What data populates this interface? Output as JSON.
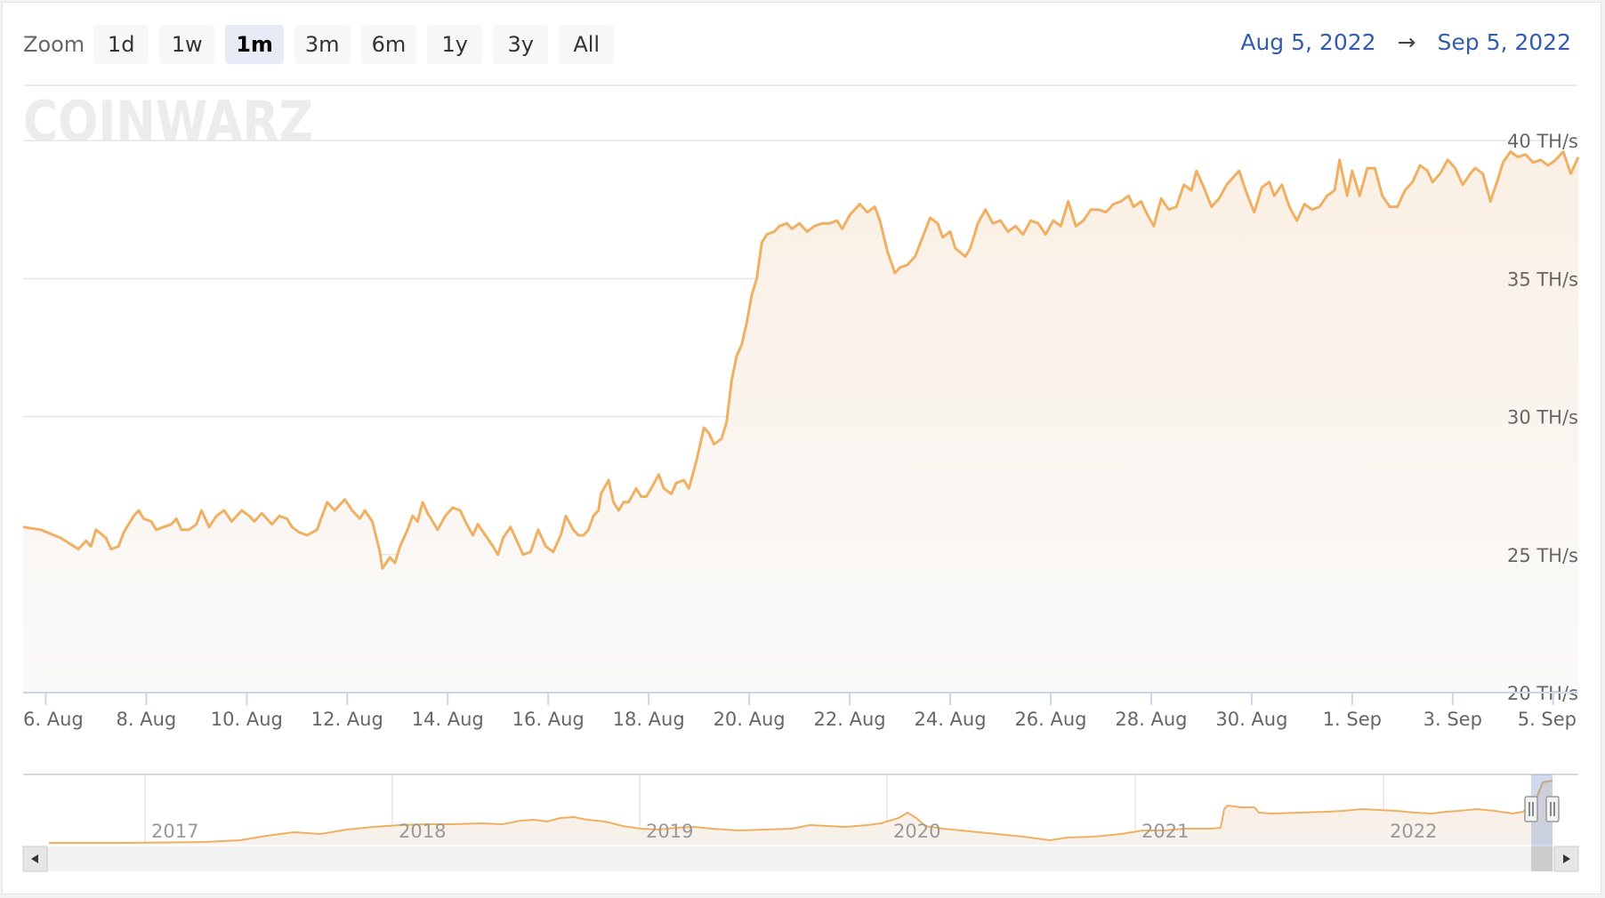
{
  "zoom": {
    "label": "Zoom",
    "buttons": [
      "1d",
      "1w",
      "1m",
      "3m",
      "6m",
      "1y",
      "3y",
      "All"
    ],
    "selected": "1m"
  },
  "range": {
    "from": "Aug 5, 2022",
    "arrow": "→",
    "to": "Sep 5, 2022"
  },
  "watermark": "COINWARZ",
  "colors": {
    "line": "#f0b063",
    "area_top": "#faf0e6",
    "accent": "#335cad",
    "grid": "#e6e6e6"
  },
  "navigator": {
    "year_labels": [
      "2017",
      "2018",
      "2019",
      "2020",
      "2021",
      "2022"
    ],
    "scroll_left_icon": "arrow-left-icon",
    "scroll_right_icon": "arrow-right-icon"
  },
  "chart_data": {
    "type": "area",
    "title": "",
    "xlabel": "",
    "ylabel": "",
    "ylim": [
      20,
      42
    ],
    "yticks": [
      20,
      25,
      30,
      35,
      40
    ],
    "ytick_labels": [
      "20 TH/s",
      "25 TH/s",
      "30 TH/s",
      "35 TH/s",
      "40 TH/s"
    ],
    "xlim": [
      5.55,
      36.5
    ],
    "xticks": [
      6,
      8,
      10,
      12,
      14,
      16,
      18,
      20,
      22,
      24,
      26,
      28,
      30,
      32,
      34,
      36
    ],
    "xtick_labels": [
      "6. Aug",
      "8. Aug",
      "10. Aug",
      "12. Aug",
      "14. Aug",
      "16. Aug",
      "18. Aug",
      "20. Aug",
      "22. Aug",
      "24. Aug",
      "26. Aug",
      "28. Aug",
      "30. Aug",
      "1. Sep",
      "3. Sep",
      "5. Sep"
    ],
    "grid": true,
    "series": [
      {
        "x_unit": "day of August 2022 (32 = 1 Sep)",
        "points": [
          [
            5.55,
            26.0
          ],
          [
            5.9,
            25.9
          ],
          [
            6.3,
            25.6
          ],
          [
            6.65,
            25.2
          ],
          [
            6.8,
            25.5
          ],
          [
            6.9,
            25.3
          ],
          [
            7.0,
            25.9
          ],
          [
            7.2,
            25.6
          ],
          [
            7.3,
            25.2
          ],
          [
            7.45,
            25.3
          ],
          [
            7.55,
            25.8
          ],
          [
            7.75,
            26.4
          ],
          [
            7.85,
            26.6
          ],
          [
            7.95,
            26.3
          ],
          [
            8.1,
            26.2
          ],
          [
            8.2,
            25.9
          ],
          [
            8.35,
            26.0
          ],
          [
            8.5,
            26.1
          ],
          [
            8.6,
            26.3
          ],
          [
            8.7,
            25.9
          ],
          [
            8.85,
            25.9
          ],
          [
            9.0,
            26.1
          ],
          [
            9.1,
            26.6
          ],
          [
            9.25,
            26.0
          ],
          [
            9.4,
            26.4
          ],
          [
            9.55,
            26.6
          ],
          [
            9.7,
            26.2
          ],
          [
            9.9,
            26.6
          ],
          [
            10.05,
            26.4
          ],
          [
            10.15,
            26.2
          ],
          [
            10.3,
            26.5
          ],
          [
            10.5,
            26.1
          ],
          [
            10.65,
            26.4
          ],
          [
            10.8,
            26.3
          ],
          [
            10.9,
            26.0
          ],
          [
            11.05,
            25.8
          ],
          [
            11.2,
            25.7
          ],
          [
            11.4,
            25.9
          ],
          [
            11.5,
            26.4
          ],
          [
            11.6,
            26.9
          ],
          [
            11.75,
            26.6
          ],
          [
            11.95,
            27.0
          ],
          [
            12.1,
            26.6
          ],
          [
            12.25,
            26.3
          ],
          [
            12.35,
            26.6
          ],
          [
            12.5,
            26.2
          ],
          [
            12.65,
            25.1
          ],
          [
            12.7,
            24.5
          ],
          [
            12.85,
            24.9
          ],
          [
            12.95,
            24.7
          ],
          [
            13.05,
            25.3
          ],
          [
            13.2,
            25.9
          ],
          [
            13.3,
            26.4
          ],
          [
            13.4,
            26.2
          ],
          [
            13.5,
            26.9
          ],
          [
            13.6,
            26.5
          ],
          [
            13.7,
            26.2
          ],
          [
            13.8,
            25.9
          ],
          [
            13.95,
            26.4
          ],
          [
            14.1,
            26.7
          ],
          [
            14.25,
            26.6
          ],
          [
            14.35,
            26.2
          ],
          [
            14.5,
            25.7
          ],
          [
            14.6,
            26.1
          ],
          [
            14.75,
            25.7
          ],
          [
            14.9,
            25.3
          ],
          [
            15.0,
            25.0
          ],
          [
            15.1,
            25.6
          ],
          [
            15.25,
            26.0
          ],
          [
            15.35,
            25.6
          ],
          [
            15.5,
            25.0
          ],
          [
            15.65,
            25.1
          ],
          [
            15.8,
            25.9
          ],
          [
            15.95,
            25.3
          ],
          [
            16.1,
            25.1
          ],
          [
            16.25,
            25.7
          ],
          [
            16.35,
            26.4
          ],
          [
            16.5,
            25.9
          ],
          [
            16.6,
            25.7
          ],
          [
            16.7,
            25.7
          ],
          [
            16.8,
            25.9
          ],
          [
            16.9,
            26.4
          ],
          [
            17.0,
            26.6
          ],
          [
            17.05,
            27.2
          ],
          [
            17.2,
            27.7
          ],
          [
            17.3,
            26.9
          ],
          [
            17.4,
            26.6
          ],
          [
            17.5,
            26.9
          ],
          [
            17.6,
            26.9
          ],
          [
            17.75,
            27.4
          ],
          [
            17.85,
            27.1
          ],
          [
            17.95,
            27.1
          ],
          [
            18.05,
            27.4
          ],
          [
            18.2,
            27.9
          ],
          [
            18.3,
            27.4
          ],
          [
            18.45,
            27.2
          ],
          [
            18.55,
            27.6
          ],
          [
            18.7,
            27.7
          ],
          [
            18.8,
            27.4
          ],
          [
            18.95,
            28.4
          ],
          [
            19.1,
            29.6
          ],
          [
            19.2,
            29.4
          ],
          [
            19.3,
            29.0
          ],
          [
            19.45,
            29.2
          ],
          [
            19.55,
            29.8
          ],
          [
            19.65,
            31.3
          ],
          [
            19.75,
            32.2
          ],
          [
            19.85,
            32.6
          ],
          [
            19.95,
            33.4
          ],
          [
            20.05,
            34.4
          ],
          [
            20.15,
            35.0
          ],
          [
            20.25,
            36.3
          ],
          [
            20.35,
            36.6
          ],
          [
            20.5,
            36.7
          ],
          [
            20.6,
            36.9
          ],
          [
            20.75,
            37.0
          ],
          [
            20.85,
            36.8
          ],
          [
            21.0,
            37.0
          ],
          [
            21.15,
            36.7
          ],
          [
            21.3,
            36.9
          ],
          [
            21.45,
            37.0
          ],
          [
            21.6,
            37.0
          ],
          [
            21.75,
            37.1
          ],
          [
            21.85,
            36.8
          ],
          [
            22.0,
            37.3
          ],
          [
            22.2,
            37.7
          ],
          [
            22.35,
            37.4
          ],
          [
            22.5,
            37.6
          ],
          [
            22.6,
            37.1
          ],
          [
            22.75,
            36.0
          ],
          [
            22.9,
            35.2
          ],
          [
            23.0,
            35.4
          ],
          [
            23.15,
            35.5
          ],
          [
            23.3,
            35.8
          ],
          [
            23.45,
            36.5
          ],
          [
            23.6,
            37.2
          ],
          [
            23.75,
            37.0
          ],
          [
            23.85,
            36.5
          ],
          [
            24.0,
            36.7
          ],
          [
            24.1,
            36.1
          ],
          [
            24.3,
            35.8
          ],
          [
            24.4,
            36.1
          ],
          [
            24.55,
            37.0
          ],
          [
            24.7,
            37.5
          ],
          [
            24.85,
            37.0
          ],
          [
            25.0,
            37.1
          ],
          [
            25.15,
            36.7
          ],
          [
            25.3,
            36.9
          ],
          [
            25.45,
            36.6
          ],
          [
            25.6,
            37.1
          ],
          [
            25.75,
            37.0
          ],
          [
            25.9,
            36.6
          ],
          [
            26.05,
            37.1
          ],
          [
            26.2,
            36.9
          ],
          [
            26.35,
            37.8
          ],
          [
            26.5,
            36.9
          ],
          [
            26.65,
            37.1
          ],
          [
            26.8,
            37.5
          ],
          [
            26.95,
            37.5
          ],
          [
            27.1,
            37.4
          ],
          [
            27.25,
            37.7
          ],
          [
            27.4,
            37.8
          ],
          [
            27.55,
            38.0
          ],
          [
            27.65,
            37.6
          ],
          [
            27.8,
            37.8
          ],
          [
            27.9,
            37.4
          ],
          [
            28.05,
            36.9
          ],
          [
            28.2,
            37.9
          ],
          [
            28.35,
            37.5
          ],
          [
            28.5,
            37.6
          ],
          [
            28.65,
            38.4
          ],
          [
            28.8,
            38.2
          ],
          [
            28.9,
            38.9
          ],
          [
            29.05,
            38.3
          ],
          [
            29.2,
            37.6
          ],
          [
            29.35,
            37.9
          ],
          [
            29.5,
            38.4
          ],
          [
            29.65,
            38.7
          ],
          [
            29.75,
            38.9
          ],
          [
            29.9,
            38.1
          ],
          [
            30.05,
            37.4
          ],
          [
            30.2,
            38.3
          ],
          [
            30.35,
            38.5
          ],
          [
            30.45,
            38.0
          ],
          [
            30.6,
            38.4
          ],
          [
            30.75,
            37.6
          ],
          [
            30.9,
            37.1
          ],
          [
            31.05,
            37.7
          ],
          [
            31.2,
            37.5
          ],
          [
            31.35,
            37.6
          ],
          [
            31.5,
            38.0
          ],
          [
            31.65,
            38.2
          ],
          [
            31.75,
            39.3
          ],
          [
            31.9,
            38.0
          ],
          [
            32.0,
            38.9
          ],
          [
            32.15,
            38.0
          ],
          [
            32.3,
            39.0
          ],
          [
            32.45,
            39.0
          ],
          [
            32.6,
            38.0
          ],
          [
            32.75,
            37.6
          ],
          [
            32.9,
            37.6
          ],
          [
            33.05,
            38.2
          ],
          [
            33.2,
            38.5
          ],
          [
            33.35,
            39.1
          ],
          [
            33.5,
            38.9
          ],
          [
            33.6,
            38.5
          ],
          [
            33.75,
            38.8
          ],
          [
            33.9,
            39.3
          ],
          [
            34.05,
            39.0
          ],
          [
            34.2,
            38.4
          ],
          [
            34.35,
            38.8
          ],
          [
            34.45,
            39.0
          ],
          [
            34.6,
            38.8
          ],
          [
            34.75,
            37.8
          ],
          [
            34.9,
            38.6
          ],
          [
            35.0,
            39.2
          ],
          [
            35.15,
            39.6
          ],
          [
            35.3,
            39.4
          ],
          [
            35.45,
            39.5
          ],
          [
            35.6,
            39.2
          ],
          [
            35.75,
            39.3
          ],
          [
            35.9,
            39.1
          ],
          [
            36.05,
            39.3
          ],
          [
            36.2,
            39.6
          ],
          [
            36.35,
            38.8
          ],
          [
            36.5,
            39.4
          ]
        ]
      }
    ]
  }
}
